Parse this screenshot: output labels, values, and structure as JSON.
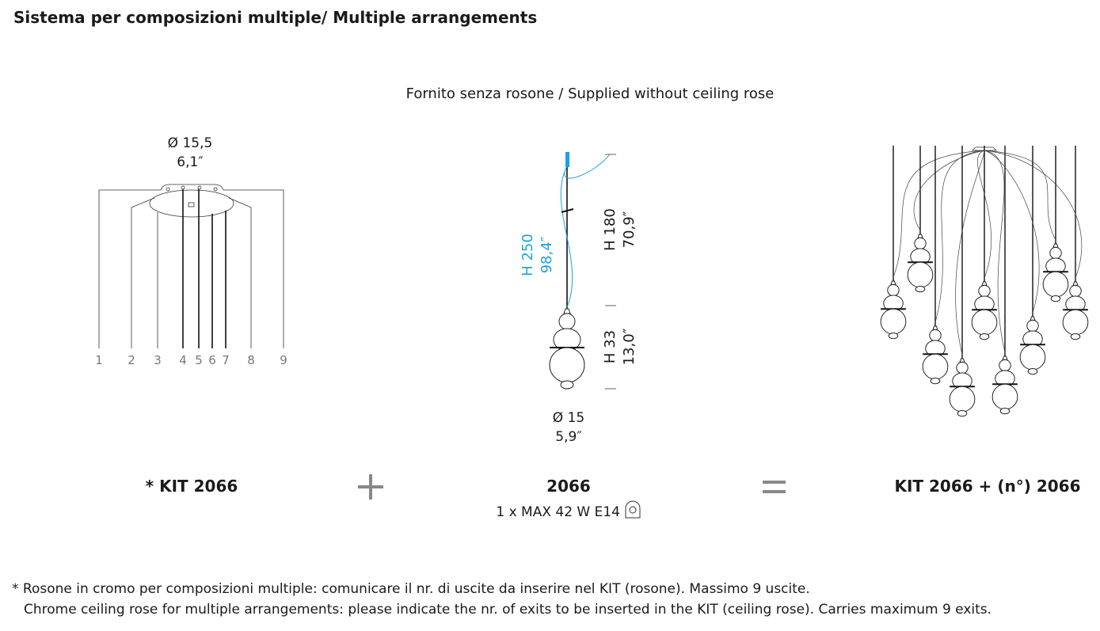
{
  "header": {
    "title": "Sistema per composizioni multiple/ Multiple arrangements",
    "note": "Fornito senza rosone / Supplied without ceiling rose"
  },
  "kit": {
    "diameter": "Ø 15,5",
    "diameter_in": "6,1″",
    "exits": [
      "1",
      "2",
      "3",
      "4",
      "5",
      "6",
      "7",
      "8",
      "9"
    ],
    "label": "* KIT 2066"
  },
  "lamp": {
    "total_height": "H 250",
    "total_height_in": "98,4″",
    "cable_height": "H 180",
    "cable_height_in": "70,9″",
    "body_height": "H 33",
    "body_height_in": "13,0″",
    "diameter": "Ø 15",
    "diameter_in": "5,9″",
    "label": "2066",
    "spec": "1 x MAX 42 W E14"
  },
  "result": {
    "label": "KIT 2066 + (n°) 2066"
  },
  "footnote": {
    "lines": [
      "* Rosone in cromo per composizioni multiple: comunicare il nr. di uscite da inserire nel KIT (rosone). Massimo 9 uscite.",
      "Chrome ceiling rose for multiple arrangements: please indicate the nr. of exits to be inserted in the KIT (ceiling rose). Carries maximum 9 exits."
    ]
  }
}
